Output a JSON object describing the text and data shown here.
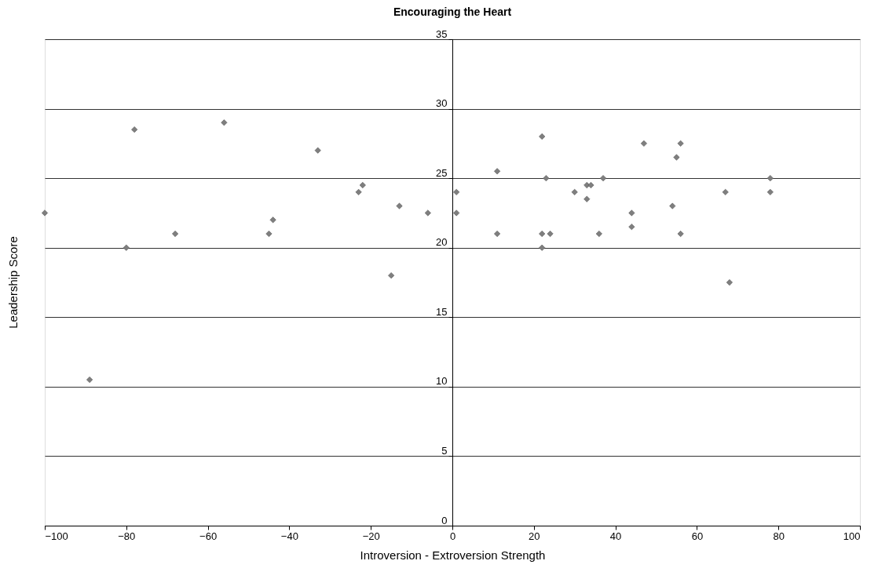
{
  "chart_data": {
    "type": "scatter",
    "title": "Encouraging the Heart",
    "xlabel": "Introversion - Extroversion Strength",
    "ylabel": "Leadership Score",
    "x": [
      -100,
      -89,
      -80,
      -78,
      -68,
      -56,
      -45,
      -44,
      -33,
      -23,
      -22,
      -15,
      -13,
      -6,
      1,
      1,
      11,
      11,
      22,
      22,
      22,
      23,
      24,
      30,
      33,
      34,
      33,
      37,
      36,
      44,
      44,
      47,
      55,
      56,
      54,
      56,
      67,
      68,
      78,
      78
    ],
    "series": [
      {
        "color": "#7f7f7f",
        "values": [
          22.5,
          10.5,
          20,
          28.5,
          21,
          29,
          21,
          22,
          27,
          24,
          24.5,
          18,
          23,
          22.5,
          24,
          22.5,
          25.5,
          21,
          28,
          21,
          20,
          25,
          21,
          24,
          24.5,
          24.5,
          23.5,
          25,
          21,
          22.5,
          21.5,
          27.5,
          26.5,
          27.5,
          23,
          21,
          24,
          17.5,
          25,
          24
        ]
      }
    ],
    "xlim": [
      -100,
      100
    ],
    "xticks": [
      -100,
      -80,
      -60,
      -40,
      -20,
      0,
      20,
      40,
      60,
      80,
      100
    ],
    "ylim": [
      0,
      35
    ],
    "yticks": [
      0,
      5,
      10,
      15,
      20,
      25,
      30,
      35
    ],
    "grid": "y",
    "marker": "diamond",
    "legend": false
  }
}
